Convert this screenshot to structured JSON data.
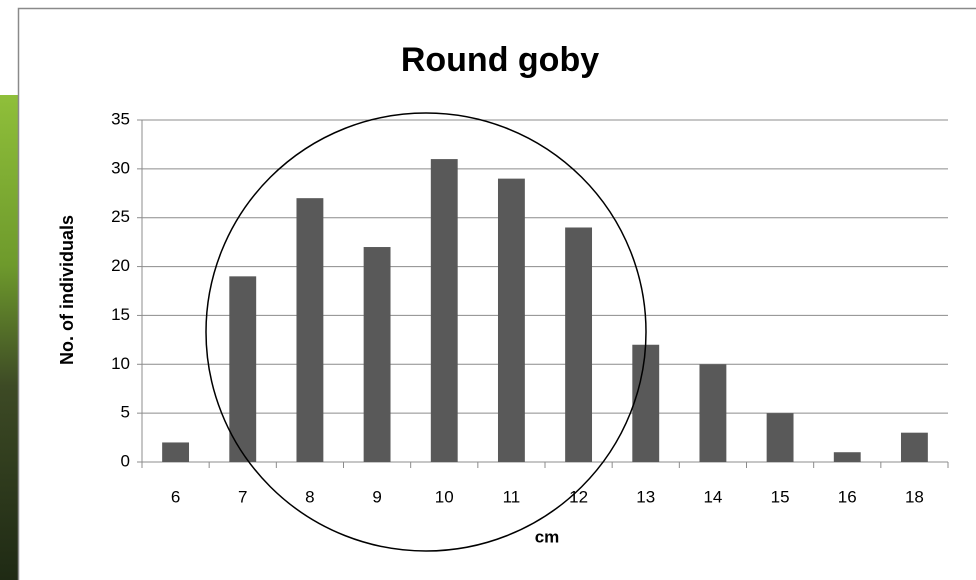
{
  "chart_data": {
    "type": "bar",
    "title": "Round goby",
    "x_label": "cm",
    "y_label": "No. of individuals",
    "categories": [
      "6",
      "7",
      "8",
      "9",
      "10",
      "11",
      "12",
      "13",
      "14",
      "15",
      "16",
      "18"
    ],
    "values": [
      2,
      19,
      27,
      22,
      31,
      29,
      24,
      12,
      10,
      5,
      1,
      3
    ],
    "color": "#595959",
    "ylim": [
      0,
      35
    ],
    "yticks": [
      0,
      5,
      10,
      15,
      20,
      25,
      30,
      35
    ],
    "grid": true
  }
}
